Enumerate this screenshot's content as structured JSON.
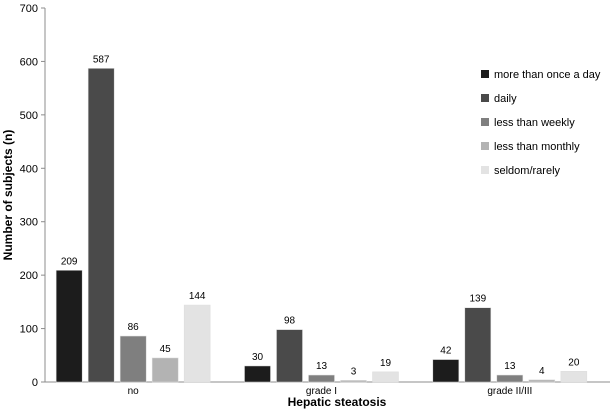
{
  "chart_data": {
    "type": "bar",
    "title": "",
    "xlabel": "Hepatic steatosis",
    "ylabel": "Number of subjects (n)",
    "ylim": [
      0,
      700
    ],
    "yticks": [
      0,
      100,
      200,
      300,
      400,
      500,
      600,
      700
    ],
    "grid": false,
    "legend_position": "right",
    "categories": [
      "no",
      "grade I",
      "grade II/III"
    ],
    "series": [
      {
        "name": "more than once a day",
        "color": "#1c1c1c",
        "values": [
          209,
          30,
          42
        ]
      },
      {
        "name": "daily",
        "color": "#4a4a4a",
        "values": [
          587,
          98,
          139
        ]
      },
      {
        "name": "less than weekly",
        "color": "#7f7f7f",
        "values": [
          86,
          13,
          13
        ]
      },
      {
        "name": "less than monthly",
        "color": "#b3b3b3",
        "values": [
          45,
          3,
          4
        ]
      },
      {
        "name": "seldom/rarely",
        "color": "#e3e3e3",
        "values": [
          144,
          19,
          20
        ]
      }
    ]
  }
}
